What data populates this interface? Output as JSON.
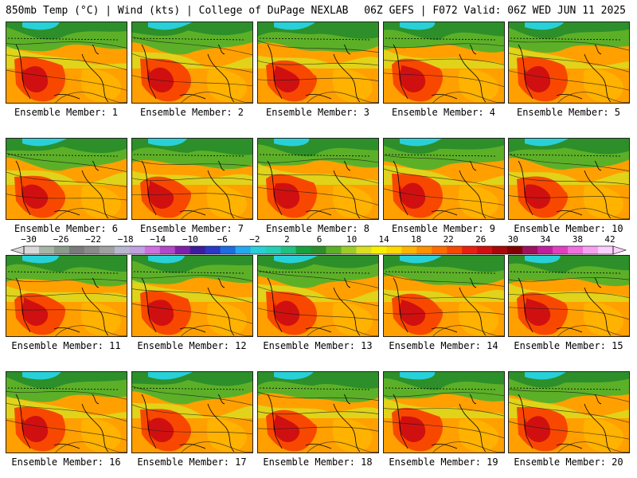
{
  "header": {
    "left": "850mb Temp (°C) | Wind (kts) | College of DuPage NEXLAB",
    "right": "06Z GEFS | F072 Valid: 06Z WED JUN 11 2025"
  },
  "panels": [
    "Ensemble Member: 1",
    "Ensemble Member: 2",
    "Ensemble Member: 3",
    "Ensemble Member: 4",
    "Ensemble Member: 5",
    "Ensemble Member: 6",
    "Ensemble Member: 7",
    "Ensemble Member: 8",
    "Ensemble Member: 9",
    "Ensemble Member: 10",
    "Ensemble Member: 11",
    "Ensemble Member: 12",
    "Ensemble Member: 13",
    "Ensemble Member: 14",
    "Ensemble Member: 15",
    "Ensemble Member: 16",
    "Ensemble Member: 17",
    "Ensemble Member: 18",
    "Ensemble Member: 19",
    "Ensemble Member: 20"
  ],
  "colorbar": {
    "ticks": [
      "-30",
      "-26",
      "-22",
      "-18",
      "-14",
      "-10",
      "-6",
      "-2",
      "2",
      "6",
      "10",
      "14",
      "18",
      "22",
      "26",
      "30",
      "34",
      "38",
      "42"
    ],
    "colors": [
      "#d9d9d9",
      "#a6b6a6",
      "#8b9a8b",
      "#7a7a7a",
      "#8a8a8a",
      "#a0a0a0",
      "#b7b7d2",
      "#c0a0e0",
      "#d070e0",
      "#b048c8",
      "#8020a8",
      "#3c1c9c",
      "#2838c8",
      "#1c6ee0",
      "#24a8f0",
      "#28d0d8",
      "#24d0b4",
      "#20c080",
      "#18a040",
      "#2d8f2a",
      "#5cb028",
      "#9ccc28",
      "#d8e020",
      "#f8f000",
      "#ffd800",
      "#ffb400",
      "#ff9000",
      "#ff6c00",
      "#f84800",
      "#e82010",
      "#d01010",
      "#a80808",
      "#800000",
      "#a01060",
      "#c020a0",
      "#e040c0",
      "#f070e0",
      "#f8a0f0",
      "#fcd0fc"
    ]
  }
}
